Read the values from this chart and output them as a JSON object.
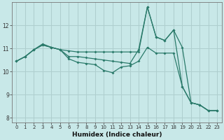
{
  "xlabel": "Humidex (Indice chaleur)",
  "background_color": "#c8e8e8",
  "grid_color": "#aecece",
  "line_color": "#2a7a6a",
  "xlim": [
    -0.5,
    23.5
  ],
  "ylim": [
    7.8,
    13.0
  ],
  "yticks": [
    8,
    9,
    10,
    11,
    12
  ],
  "xticks": [
    0,
    1,
    2,
    3,
    4,
    5,
    6,
    7,
    8,
    9,
    10,
    11,
    12,
    13,
    14,
    15,
    16,
    17,
    18,
    19,
    20,
    21,
    22,
    23
  ],
  "line1_x": [
    0,
    1,
    2,
    3,
    4,
    5,
    6,
    7,
    8,
    9,
    10,
    11,
    12,
    13,
    14,
    15,
    16,
    17,
    18,
    19,
    20,
    21,
    22,
    23
  ],
  "line1_y": [
    10.45,
    10.65,
    10.95,
    11.2,
    11.05,
    10.95,
    10.9,
    10.85,
    10.85,
    10.85,
    10.85,
    10.85,
    10.85,
    10.85,
    10.85,
    12.8,
    11.5,
    11.35,
    11.8,
    11.05,
    8.65,
    8.55,
    8.3,
    8.3
  ],
  "line2_x": [
    0,
    1,
    2,
    3,
    4,
    5,
    6,
    7,
    8,
    9,
    10,
    11,
    12,
    13,
    14,
    15,
    16,
    17,
    18,
    19,
    20,
    21,
    22,
    23
  ],
  "line2_y": [
    10.45,
    10.65,
    10.95,
    11.15,
    11.05,
    10.95,
    10.65,
    10.65,
    10.6,
    10.55,
    10.5,
    10.45,
    10.4,
    10.35,
    10.95,
    12.8,
    11.5,
    11.35,
    11.8,
    9.35,
    8.65,
    8.55,
    8.3,
    8.3
  ],
  "line3_x": [
    0,
    1,
    2,
    3,
    4,
    5,
    6,
    7,
    8,
    9,
    10,
    11,
    12,
    13,
    14,
    15,
    16,
    17,
    18,
    19,
    20,
    21,
    22,
    23
  ],
  "line3_y": [
    10.45,
    10.65,
    10.95,
    11.15,
    11.05,
    10.95,
    10.55,
    10.4,
    10.35,
    10.3,
    10.05,
    9.95,
    10.2,
    10.25,
    10.45,
    11.05,
    10.8,
    10.8,
    10.8,
    9.35,
    8.65,
    8.55,
    8.3,
    8.3
  ]
}
